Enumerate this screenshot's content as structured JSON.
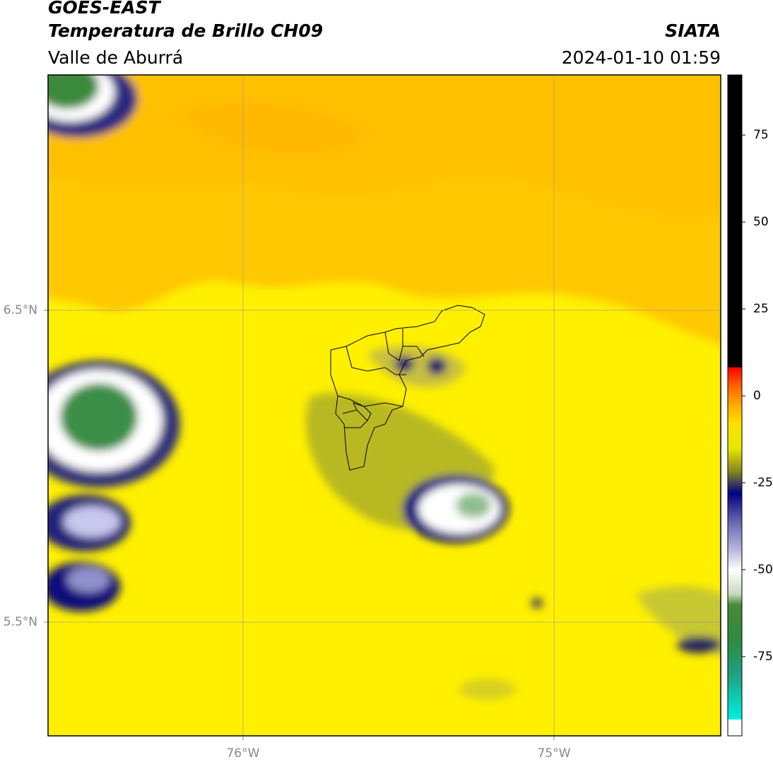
{
  "header": {
    "satellite": "GOES-EAST",
    "product": "Temperatura de Brillo CH09",
    "region": "Valle de Aburrá",
    "source": "SIATA",
    "datetime": "2024-01-10 01:59"
  },
  "map": {
    "xlim": [
      -76.627,
      -74.464
    ],
    "ylim": [
      5.135,
      7.255
    ],
    "xticks": [
      {
        "value": -76,
        "label": "76°W"
      },
      {
        "value": -75,
        "label": "75°W"
      }
    ],
    "yticks": [
      {
        "value": 5.5,
        "label": "5.5°N"
      },
      {
        "value": 6.5,
        "label": "6.5°N"
      }
    ],
    "grid": true
  },
  "colorbar": {
    "lim": [
      -97.8,
      92.3
    ],
    "ticks": [
      -75,
      -50,
      -25,
      0,
      25,
      50,
      75
    ],
    "stops": [
      {
        "value": -97.8,
        "color": "#ffffff"
      },
      {
        "value": -93,
        "color": "#ffffff"
      },
      {
        "value": -93,
        "color": "#00f0e0"
      },
      {
        "value": -80,
        "color": "#20a080"
      },
      {
        "value": -70,
        "color": "#2e8b3e"
      },
      {
        "value": -60,
        "color": "#4a8a3a"
      },
      {
        "value": -57,
        "color": "#c8d8c0"
      },
      {
        "value": -50,
        "color": "#ffffff"
      },
      {
        "value": -45,
        "color": "#c0c0e0"
      },
      {
        "value": -35,
        "color": "#5a5aaa"
      },
      {
        "value": -28,
        "color": "#000080"
      },
      {
        "value": -25,
        "color": "#40405a"
      },
      {
        "value": -22,
        "color": "#808020"
      },
      {
        "value": -15,
        "color": "#e8e800"
      },
      {
        "value": -8,
        "color": "#ffe000"
      },
      {
        "value": -3,
        "color": "#ffb000"
      },
      {
        "value": 3,
        "color": "#ff6000"
      },
      {
        "value": 8.3,
        "color": "#ff0000"
      },
      {
        "value": 8.3,
        "color": "#000000"
      },
      {
        "value": 92.3,
        "color": "#000000"
      }
    ]
  }
}
